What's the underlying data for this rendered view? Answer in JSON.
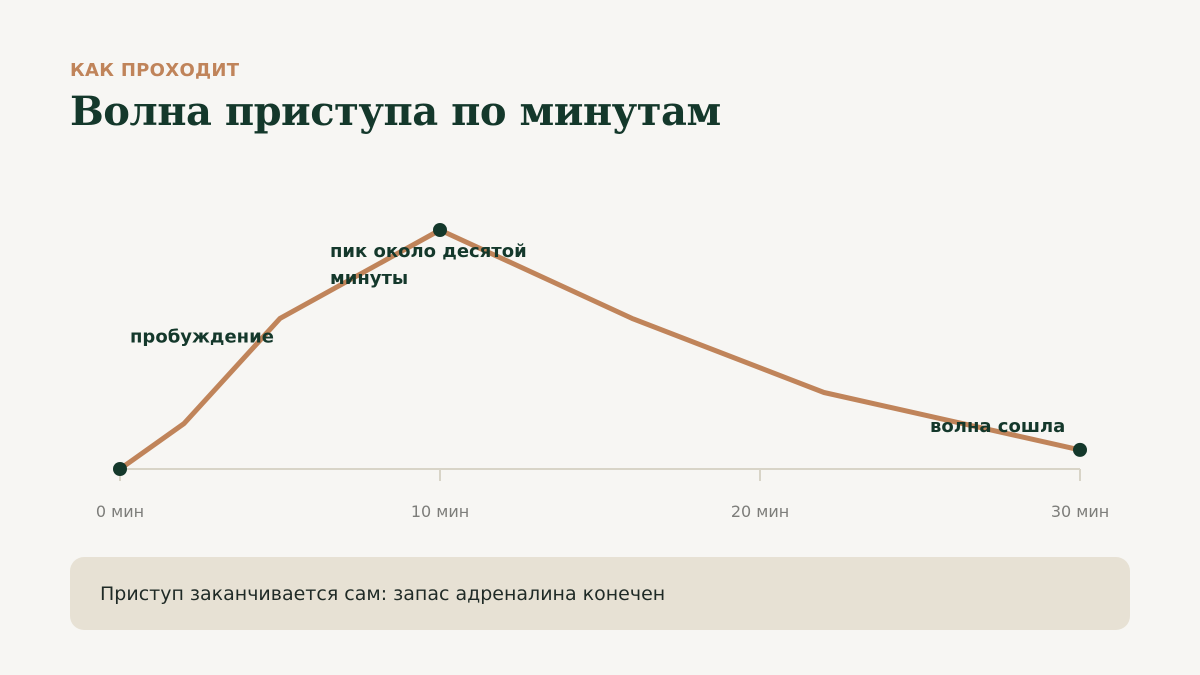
{
  "header": {
    "eyebrow": "КАК ПРОХОДИТ",
    "title": "Волна приступа по минутам"
  },
  "chart_data": {
    "type": "line",
    "title": "",
    "xlabel": "",
    "ylabel": "",
    "xlim": [
      0,
      30
    ],
    "ylim": [
      0,
      100
    ],
    "x_unit": "мин",
    "x_ticks": [
      "0 мин",
      "10 мин",
      "20 мин",
      "30 мин"
    ],
    "x_tick_values": [
      0,
      10,
      20,
      30
    ],
    "grid": false,
    "colors": {
      "line": "#c0845a",
      "marker": "#14382b",
      "axis": "#d8d4c7"
    },
    "series": [
      {
        "x": [
          0,
          2,
          5,
          10,
          16,
          22,
          30
        ],
        "y": [
          0,
          19,
          63,
          100,
          63,
          32,
          8
        ]
      }
    ],
    "markers": [
      {
        "x": 0,
        "y": 0
      },
      {
        "x": 10,
        "y": 100
      },
      {
        "x": 30,
        "y": 8
      }
    ],
    "annotations": [
      {
        "text": "пробуждение",
        "x": 5,
        "y": 63
      },
      {
        "text": "пик около десятой минуты",
        "lines": [
          "пик около десятой",
          "минуты"
        ],
        "x": 10,
        "y": 100
      },
      {
        "text": "волна сошла",
        "x": 30,
        "y": 8
      }
    ]
  },
  "note": {
    "text": "Приступ заканчивается сам: запас адреналина конечен"
  }
}
